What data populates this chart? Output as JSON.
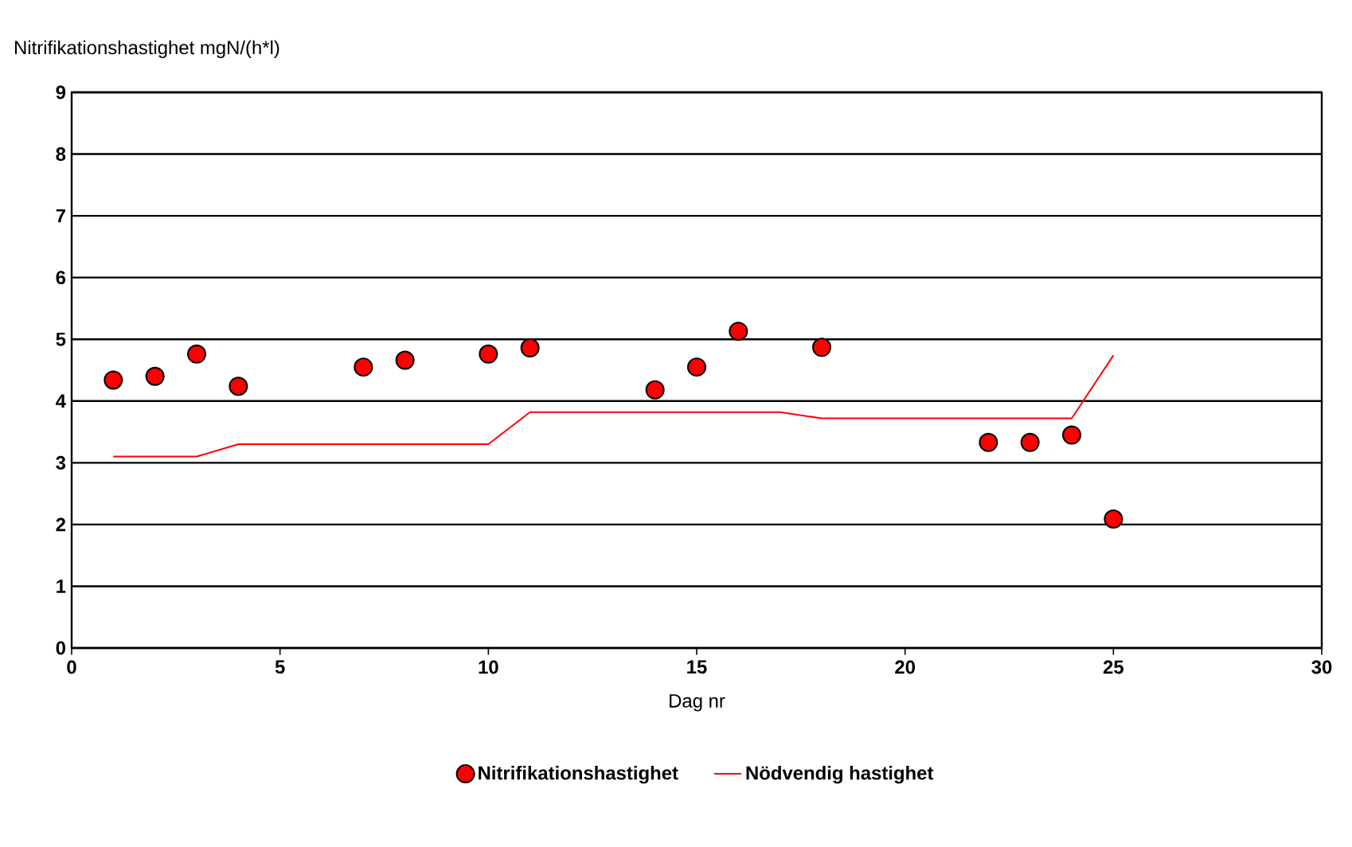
{
  "chart_data": {
    "type": "scatter",
    "ylabel": "Nitrifikationshastighet mgN/(h*l)",
    "xlabel": "Dag nr",
    "xlim": [
      0,
      30
    ],
    "xticks": [
      0,
      5,
      10,
      15,
      20,
      25,
      30
    ],
    "ylim": [
      0,
      9
    ],
    "yticks": [
      0,
      1,
      2,
      3,
      4,
      5,
      6,
      7,
      8,
      9
    ],
    "grid": "y",
    "legend": "bottom",
    "series": [
      {
        "name": "Nitrifikationshastighet",
        "marker": "circle",
        "color": "#ff0000",
        "x": [
          1,
          2,
          3,
          4,
          7,
          8,
          10,
          11,
          14,
          15,
          16,
          18,
          22,
          23,
          24,
          25
        ],
        "values": [
          4.34,
          4.4,
          4.76,
          4.24,
          4.55,
          4.66,
          4.76,
          4.86,
          4.18,
          4.55,
          5.13,
          4.87,
          3.33,
          3.33,
          3.45,
          2.09
        ]
      },
      {
        "name": "Nödvendig hastighet",
        "type": "line",
        "marker": "none",
        "color": "#ff0000",
        "x": [
          1,
          3,
          4,
          10,
          11,
          17,
          18,
          24,
          25
        ],
        "values": [
          3.1,
          3.1,
          3.3,
          3.3,
          3.82,
          3.82,
          3.72,
          3.72,
          4.74
        ]
      }
    ]
  }
}
